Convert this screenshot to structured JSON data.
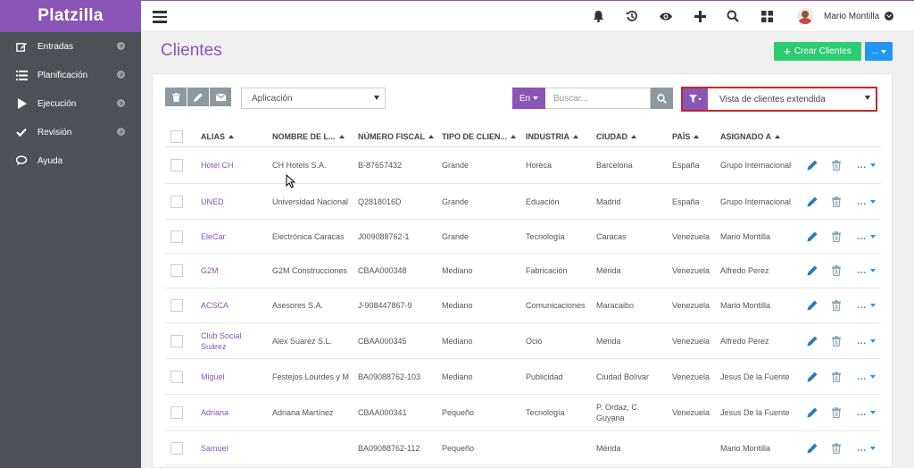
{
  "brand": "Platzilla",
  "sidebar": {
    "items": [
      {
        "label": "Entradas",
        "icon": "edit-icon",
        "has_arrow": true
      },
      {
        "label": "Planificación",
        "icon": "list-icon",
        "has_arrow": true
      },
      {
        "label": "Ejecución",
        "icon": "play-icon",
        "has_arrow": true
      },
      {
        "label": "Revisión",
        "icon": "check-icon",
        "has_arrow": true
      },
      {
        "label": "Ayuda",
        "icon": "chat-icon",
        "has_arrow": false
      }
    ]
  },
  "topbar": {
    "icons": [
      "bell-icon",
      "history-icon",
      "eye-icon",
      "plus-icon",
      "search-icon",
      "grid-icon"
    ],
    "user_name": "Mario Montilla"
  },
  "page": {
    "title": "Clientes",
    "create_label": "Crear Clientes",
    "more_label": "..."
  },
  "toolbar": {
    "app_select": "Aplicación",
    "lang_label": "En",
    "search_placeholder": "Buscar...",
    "view_select": "Vista de clientes extendida"
  },
  "table": {
    "columns": [
      "ALIAS",
      "NOMBRE DE L...",
      "NÚMERO FISCAL",
      "TIPO DE CLIEN...",
      "INDUSTRIA",
      "CIUDAD",
      "PAÍS",
      "ASIGNADO A"
    ],
    "rows": [
      {
        "alias": "Hotel CH",
        "nombre": "CH Hotels S.A.",
        "fiscal": "B-87657432",
        "tipo": "Grande",
        "industria": "Horeca",
        "ciudad": "Barcelona",
        "pais": "España",
        "asignado": "Grupo Internacional"
      },
      {
        "alias": "UNED",
        "nombre": "Universidad Nacional",
        "fiscal": "Q2818016D",
        "tipo": "Grande",
        "industria": "Eduación",
        "ciudad": "Madrid",
        "pais": "España",
        "asignado": "Grupo Internacional"
      },
      {
        "alias": "EleCar",
        "nombre": "Electrónica Caracas",
        "fiscal": "J009088762-1",
        "tipo": "Grande",
        "industria": "Tecnología",
        "ciudad": "Caracas",
        "pais": "Venezuela",
        "asignado": "Mario Montilla"
      },
      {
        "alias": "G2M",
        "nombre": "G2M Construcciones",
        "fiscal": "CBAA000348",
        "tipo": "Mediano",
        "industria": "Fabricación",
        "ciudad": "Mérida",
        "pais": "Venezuela",
        "asignado": "Alfredo Perez"
      },
      {
        "alias": "ACSCA",
        "nombre": "Asesores S.A.",
        "fiscal": "J-908447867-9",
        "tipo": "Mediano",
        "industria": "Comunicaciones",
        "ciudad": "Maracaibo",
        "pais": "Venezuela",
        "asignado": "Mario Montilla"
      },
      {
        "alias": "Club Social Suárez",
        "nombre": "Alex Suarez S.L.",
        "fiscal": "CBAA000345",
        "tipo": "Mediano",
        "industria": "Ocio",
        "ciudad": "Mérida",
        "pais": "Venezuela",
        "asignado": "Alfredo Perez"
      },
      {
        "alias": "Miguel",
        "nombre": "Festejos Lourdes y M",
        "fiscal": "BA09088762-103",
        "tipo": "Mediano",
        "industria": "Publicidad",
        "ciudad": "Ciudad Bolívar",
        "pais": "Venezuela",
        "asignado": "Jesus De la Fuente"
      },
      {
        "alias": "Adriana",
        "nombre": "Adriana Martínez",
        "fiscal": "CBAA000341",
        "tipo": "Pequeño",
        "industria": "Tecnología",
        "ciudad": "P. Ordaz, C. Guyana",
        "pais": "Venezuela",
        "asignado": "Jesus De la Fuente"
      },
      {
        "alias": "Samuel",
        "nombre": "",
        "fiscal": "BA09088762-112",
        "tipo": "Pequeño",
        "industria": "",
        "ciudad": "Mérida",
        "pais": "",
        "asignado": "Mario Montilla"
      }
    ]
  },
  "colors": {
    "brand": "#8a55b6",
    "sidebar": "#4b5157",
    "create": "#2ecc71",
    "more": "#2196f3",
    "highlight": "#c62828"
  }
}
